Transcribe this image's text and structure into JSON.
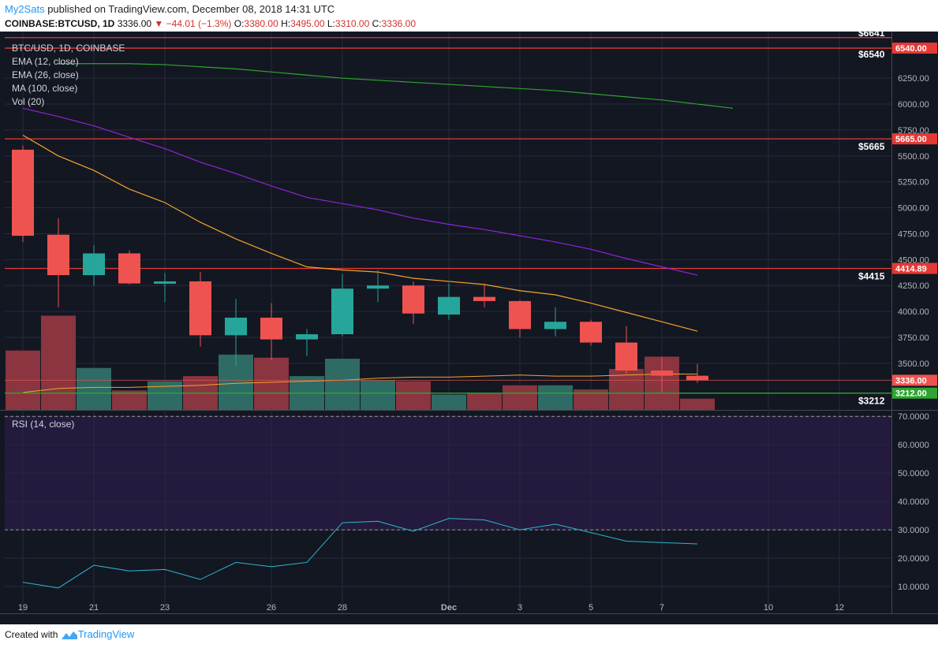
{
  "header": {
    "author": "My2Sats",
    "published_text": " published on TradingView.com, December 08, 2018 14:31 UTC",
    "symbol": "COINBASE:BTCUSD, 1D",
    "last_price": "3336.00",
    "change": "−44.01 (−1.3%)",
    "open_label": "O:",
    "open": "3380.00",
    "high_label": "H:",
    "high": "3495.00",
    "low_label": "L:",
    "low": "3310.00",
    "close_label": "C:",
    "close": "3336.00"
  },
  "legend": [
    "BTC/USD, 1D, COINBASE",
    "EMA (12, close)",
    "EMA (26, close)",
    "MA (100, close)",
    "Vol (20)"
  ],
  "rsi_legend": "RSI (14, close)",
  "footer": {
    "created_with": "Created with",
    "brand": "TradingView"
  },
  "colors": {
    "background": "#131722",
    "grid": "#262b3a",
    "up": "#26a69a",
    "down": "#ef5350",
    "vol_up": "#2e6b64",
    "vol_down": "#8a3540",
    "ema12": "#f6a32a",
    "ema26": "#8e24d8",
    "ma100": "#2fa52f",
    "level_line": "#e53935",
    "rsi_line": "#2ab8cf",
    "rsi_band": "#231a3d"
  },
  "chart_data": {
    "type": "candlestick",
    "symbol": "BTC/USD",
    "interval": "1D",
    "ylim": [
      3050,
      6700
    ],
    "x_ticks": [
      "19",
      "21",
      "23",
      "26",
      "28",
      "Dec",
      "3",
      "5",
      "7",
      "10",
      "12"
    ],
    "y_ticks": [
      "6250.00",
      "6000.00",
      "5750.00",
      "5500.00",
      "5250.00",
      "5000.00",
      "4750.00",
      "4500.00",
      "4250.00",
      "4000.00",
      "3750.00",
      "3500.00"
    ],
    "candles": [
      {
        "date": "Nov 19",
        "open": 5560,
        "high": 5600,
        "low": 4670,
        "close": 4730
      },
      {
        "date": "Nov 20",
        "open": 4740,
        "high": 4900,
        "low": 4040,
        "close": 4350
      },
      {
        "date": "Nov 21",
        "open": 4350,
        "high": 4640,
        "low": 4250,
        "close": 4560
      },
      {
        "date": "Nov 22",
        "open": 4560,
        "high": 4590,
        "low": 4260,
        "close": 4270
      },
      {
        "date": "Nov 23",
        "open": 4270,
        "high": 4370,
        "low": 4090,
        "close": 4290
      },
      {
        "date": "Nov 24",
        "open": 4290,
        "high": 4380,
        "low": 3660,
        "close": 3770
      },
      {
        "date": "Nov 25",
        "open": 3770,
        "high": 4120,
        "low": 3470,
        "close": 3940
      },
      {
        "date": "Nov 26",
        "open": 3940,
        "high": 4080,
        "low": 3530,
        "close": 3730
      },
      {
        "date": "Nov 27",
        "open": 3730,
        "high": 3830,
        "low": 3570,
        "close": 3780
      },
      {
        "date": "Nov 28",
        "open": 3780,
        "high": 4360,
        "low": 3760,
        "close": 4220
      },
      {
        "date": "Nov 29",
        "open": 4220,
        "high": 4400,
        "low": 4090,
        "close": 4250
      },
      {
        "date": "Nov 30",
        "open": 4250,
        "high": 4290,
        "low": 3880,
        "close": 3980
      },
      {
        "date": "Dec 1",
        "open": 3970,
        "high": 4270,
        "low": 3920,
        "close": 4140
      },
      {
        "date": "Dec 2",
        "open": 4140,
        "high": 4270,
        "low": 4040,
        "close": 4100
      },
      {
        "date": "Dec 3",
        "open": 4100,
        "high": 4110,
        "low": 3750,
        "close": 3830
      },
      {
        "date": "Dec 4",
        "open": 3830,
        "high": 4040,
        "low": 3760,
        "close": 3900
      },
      {
        "date": "Dec 5",
        "open": 3900,
        "high": 3920,
        "low": 3670,
        "close": 3700
      },
      {
        "date": "Dec 6",
        "open": 3700,
        "high": 3860,
        "low": 3400,
        "close": 3430
      },
      {
        "date": "Dec 7",
        "open": 3430,
        "high": 3560,
        "low": 3220,
        "close": 3380
      },
      {
        "date": "Dec 8",
        "open": 3380,
        "high": 3495,
        "low": 3310,
        "close": 3336
      }
    ],
    "volume": [
      {
        "date": "Nov 19",
        "value": 58,
        "dir": "down"
      },
      {
        "date": "Nov 20",
        "value": 92,
        "dir": "down"
      },
      {
        "date": "Nov 21",
        "value": 41,
        "dir": "up"
      },
      {
        "date": "Nov 22",
        "value": 19,
        "dir": "down"
      },
      {
        "date": "Nov 23",
        "value": 28,
        "dir": "up"
      },
      {
        "date": "Nov 24",
        "value": 33,
        "dir": "down"
      },
      {
        "date": "Nov 25",
        "value": 54,
        "dir": "up"
      },
      {
        "date": "Nov 26",
        "value": 51,
        "dir": "down"
      },
      {
        "date": "Nov 27",
        "value": 33,
        "dir": "up"
      },
      {
        "date": "Nov 28",
        "value": 50,
        "dir": "up"
      },
      {
        "date": "Nov 29",
        "value": 29,
        "dir": "up"
      },
      {
        "date": "Nov 30",
        "value": 28,
        "dir": "down"
      },
      {
        "date": "Dec 1",
        "value": 15,
        "dir": "up"
      },
      {
        "date": "Dec 2",
        "value": 16,
        "dir": "down"
      },
      {
        "date": "Dec 3",
        "value": 24,
        "dir": "down"
      },
      {
        "date": "Dec 4",
        "value": 24,
        "dir": "up"
      },
      {
        "date": "Dec 5",
        "value": 20,
        "dir": "down"
      },
      {
        "date": "Dec 6",
        "value": 40,
        "dir": "down"
      },
      {
        "date": "Dec 7",
        "value": 52,
        "dir": "down"
      },
      {
        "date": "Dec 8",
        "value": 11,
        "dir": "down"
      }
    ],
    "ema12": [
      5700,
      5500,
      5360,
      5180,
      5050,
      4860,
      4700,
      4560,
      4430,
      4400,
      4380,
      4320,
      4290,
      4260,
      4200,
      4160,
      4080,
      3990,
      3900,
      3810
    ],
    "ema26": [
      5960,
      5880,
      5790,
      5680,
      5570,
      5440,
      5330,
      5210,
      5100,
      5040,
      4980,
      4900,
      4840,
      4790,
      4730,
      4670,
      4600,
      4510,
      4430,
      4350
    ],
    "ma100": [
      6390,
      6390,
      6390,
      6380,
      6360,
      6340,
      6310,
      6280,
      6250,
      6230,
      6210,
      6190,
      6170,
      6150,
      6130,
      6100,
      6070,
      6040,
      6000,
      5960
    ],
    "ma100_note": "starts at Nov 20 (index 1)",
    "volume_ma": [
      17,
      21,
      22,
      22,
      23,
      24,
      26,
      27,
      28,
      29,
      31,
      32,
      32,
      33,
      34,
      33,
      33,
      34,
      35,
      35
    ],
    "levels": [
      {
        "value": 6641,
        "label": "$6641"
      },
      {
        "value": 6540,
        "label": "$6540",
        "price_tag": "6540.00"
      },
      {
        "value": 5665,
        "label": "$5665",
        "price_tag": "5665.00"
      },
      {
        "value": 4415,
        "label": "$4415",
        "price_tag": "4414.89"
      },
      {
        "value": 3336,
        "price_tag": "3336.00"
      },
      {
        "value": 3212,
        "label": "$3212",
        "price_tag": "3212.00"
      }
    ],
    "rsi": {
      "ylim": [
        5,
        72
      ],
      "overbought": 70,
      "oversold": 30,
      "y_ticks": [
        "70.0000",
        "60.0000",
        "50.0000",
        "40.0000",
        "30.0000",
        "20.0000",
        "10.0000"
      ],
      "values": [
        11.5,
        9.5,
        17.5,
        15.5,
        16,
        12.5,
        18.5,
        17,
        18.5,
        32.5,
        33,
        29.5,
        34,
        33.5,
        30,
        32,
        29,
        26,
        25.5,
        25
      ]
    }
  }
}
